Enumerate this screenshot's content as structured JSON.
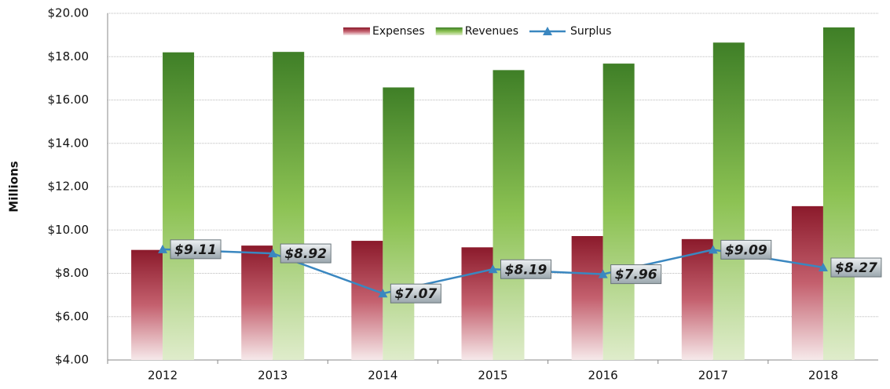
{
  "chart_data": {
    "type": "bar",
    "y_label": "Millions",
    "categories": [
      "2012",
      "2013",
      "2014",
      "2015",
      "2016",
      "2017",
      "2018"
    ],
    "series": [
      {
        "name": "Expenses",
        "color": "#8b1a2b",
        "values": [
          9.08,
          9.28,
          9.5,
          9.2,
          9.72,
          9.58,
          11.1
        ]
      },
      {
        "name": "Revenues",
        "color": "#4a8a2a",
        "values": [
          18.2,
          18.22,
          16.58,
          17.38,
          17.68,
          18.65,
          19.35
        ]
      },
      {
        "name": "Surplus",
        "type": "line",
        "color": "#3a87c0",
        "values": [
          9.11,
          8.92,
          7.07,
          8.19,
          7.96,
          9.09,
          8.27
        ],
        "value_labels": [
          "$9.11",
          "$8.92",
          "$7.07",
          "$8.19",
          "$7.96",
          "$9.09",
          "$8.27"
        ]
      }
    ],
    "ylim": [
      4,
      20
    ],
    "yticks": [
      {
        "value": 4,
        "label": "$4.00"
      },
      {
        "value": 6,
        "label": "$6.00"
      },
      {
        "value": 8,
        "label": "$8.00"
      },
      {
        "value": 10,
        "label": "$10.00"
      },
      {
        "value": 12,
        "label": "$12.00"
      },
      {
        "value": 14,
        "label": "$14.00"
      },
      {
        "value": 16,
        "label": "$16.00"
      },
      {
        "value": 18,
        "label": "$18.00"
      },
      {
        "value": 20,
        "label": "$20.00"
      }
    ],
    "grid": true,
    "legend": "top"
  }
}
